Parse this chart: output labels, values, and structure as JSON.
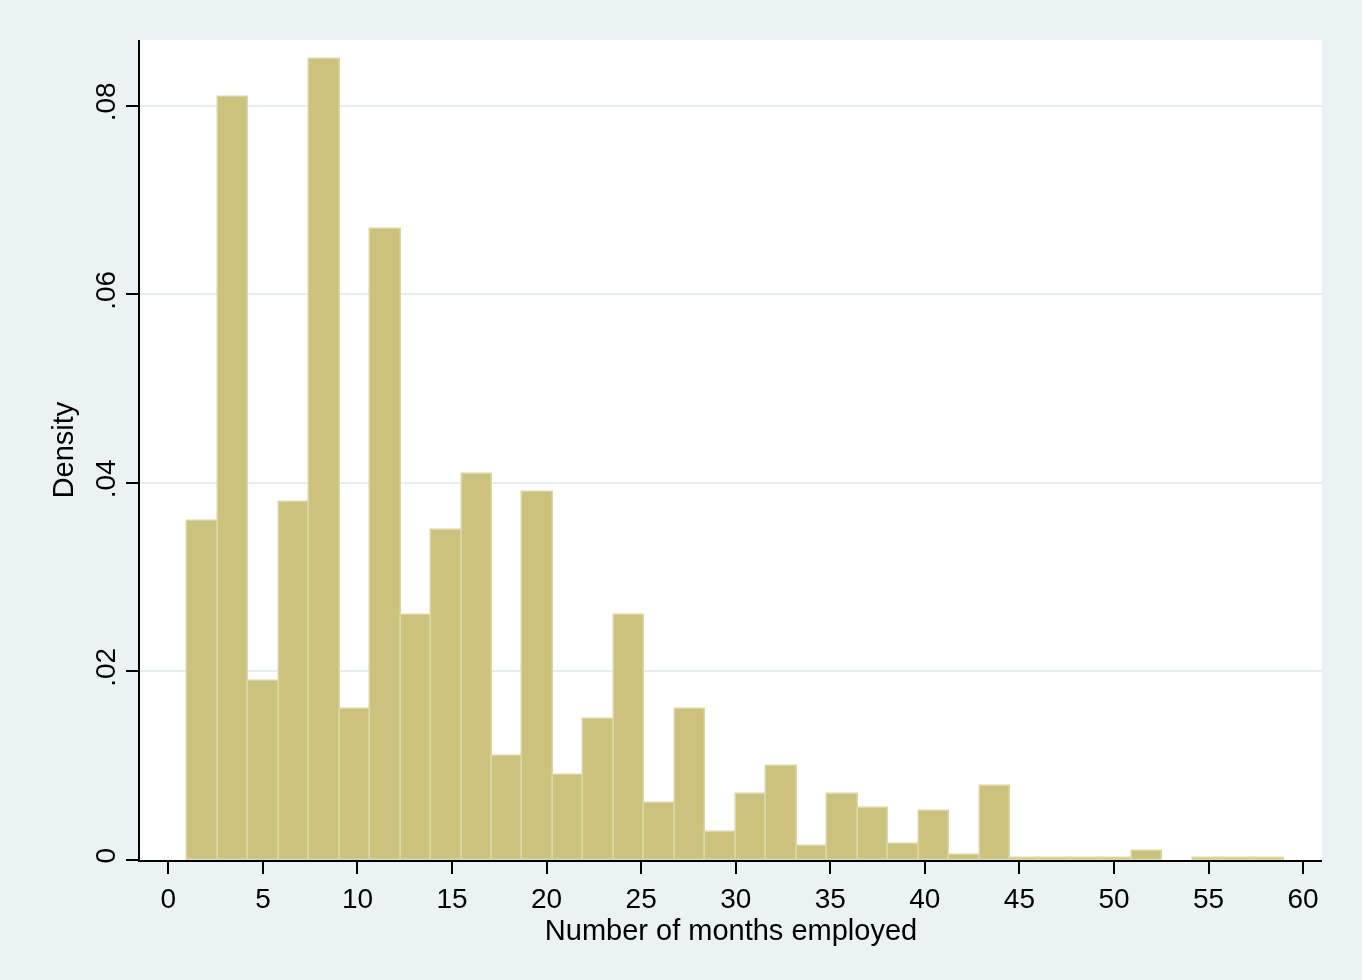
{
  "chart_data": {
    "type": "histogram",
    "xlabel": "Number of months employed",
    "ylabel": "Density",
    "bins": [
      1,
      2.61,
      4.22,
      5.83,
      7.44,
      9.06,
      10.67,
      12.28,
      13.89,
      15.5,
      17.11,
      18.72,
      20.33,
      21.94,
      23.56,
      25.17,
      26.78,
      28.39,
      30,
      31.61,
      33.22,
      34.83,
      36.44,
      38.06,
      39.67,
      41.28,
      42.89,
      44.5,
      46.11,
      47.72,
      49.33,
      50.94,
      52.56,
      54.17,
      55.78,
      57.39,
      59
    ],
    "values": [
      0.036,
      0.081,
      0.019,
      0.038,
      0.085,
      0.016,
      0.067,
      0.026,
      0.035,
      0.041,
      0.011,
      0.039,
      0.009,
      0.015,
      0.026,
      0.006,
      0.016,
      0.003,
      0.007,
      0.01,
      0.0015,
      0.007,
      0.0055,
      0.0017,
      0.0052,
      0.0005,
      0.0079,
      0.0002,
      0.0002,
      0.0002,
      0.0002,
      0.001,
      0,
      0.0002,
      0.0002,
      0.0002
    ],
    "color": "#cbc27e",
    "xlim": [
      -1.5,
      61
    ],
    "xticks": [
      0,
      5,
      10,
      15,
      20,
      25,
      30,
      35,
      40,
      45,
      50,
      55,
      60
    ],
    "ylim": [
      0,
      0.087
    ],
    "yticks": [
      0,
      {
        "value": 0.02,
        "label": ".02"
      },
      {
        "value": 0.04,
        "label": ".04"
      },
      {
        "value": 0.06,
        "label": ".06"
      },
      {
        "value": 0.08,
        "label": ".08"
      }
    ],
    "grid": "y"
  }
}
